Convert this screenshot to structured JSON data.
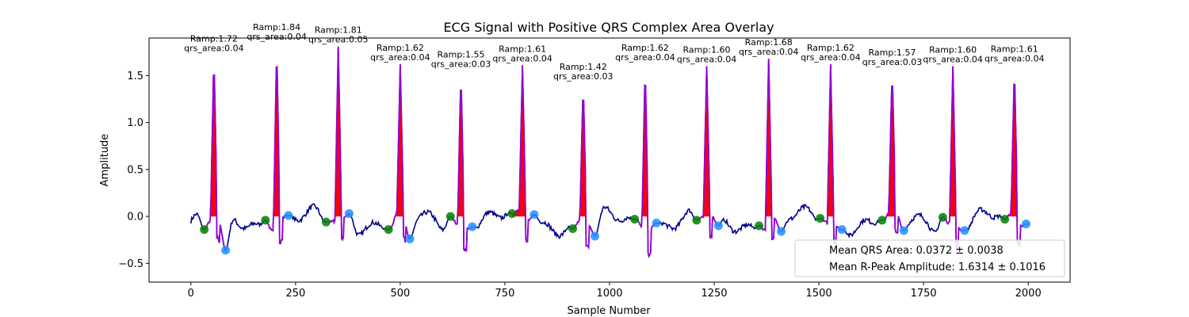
{
  "chart_data": {
    "type": "line",
    "title": "ECG Signal with Positive QRS Complex Area Overlay",
    "xlabel": "Sample Number",
    "ylabel": "Amplitude",
    "xlim": [
      -100,
      2100
    ],
    "ylim": [
      -0.7,
      1.9
    ],
    "xticks": [
      0,
      250,
      500,
      750,
      1000,
      1250,
      1500,
      1750,
      2000
    ],
    "yticks": [
      -0.5,
      0.0,
      0.5,
      1.0,
      1.5
    ],
    "xtick_labels": [
      "0",
      "250",
      "500",
      "750",
      "1000",
      "1250",
      "1500",
      "1750",
      "2000"
    ],
    "ytick_labels": [
      "−0.5",
      "0.0",
      "0.5",
      "1.0",
      "1.5"
    ],
    "grid": false,
    "colors": {
      "signal": "#00008b",
      "qrs_segment": "#9400d3",
      "qrs_area_fill": "#ff0000",
      "q_onset_marker": "#008000",
      "s_offset_marker": "#1e90ff"
    },
    "beats": [
      {
        "r_x": 55,
        "r_amp": 1.72,
        "ramp_label": "Ramp:1.72",
        "area_label": "qrs_area:0.04",
        "q_x": 32,
        "q_y": -0.14,
        "s_x": 83,
        "s_y": -0.36
      },
      {
        "r_x": 205,
        "r_amp": 1.84,
        "ramp_label": "Ramp:1.84",
        "area_label": "qrs_area:0.04",
        "q_x": 178,
        "q_y": -0.04,
        "s_x": 233,
        "s_y": 0.01
      },
      {
        "r_x": 352,
        "r_amp": 1.81,
        "ramp_label": "Ramp:1.81",
        "area_label": "qrs_area:0.05",
        "q_x": 323,
        "q_y": -0.06,
        "s_x": 378,
        "s_y": 0.03
      },
      {
        "r_x": 500,
        "r_amp": 1.62,
        "ramp_label": "Ramp:1.62",
        "area_label": "qrs_area:0.04",
        "q_x": 472,
        "q_y": -0.14,
        "s_x": 523,
        "s_y": -0.24
      },
      {
        "r_x": 645,
        "r_amp": 1.55,
        "ramp_label": "Ramp:1.55",
        "area_label": "qrs_area:0.03",
        "q_x": 620,
        "q_y": 0.0,
        "s_x": 672,
        "s_y": -0.11
      },
      {
        "r_x": 792,
        "r_amp": 1.61,
        "ramp_label": "Ramp:1.61",
        "area_label": "qrs_area:0.04",
        "q_x": 767,
        "q_y": 0.03,
        "s_x": 820,
        "s_y": 0.02
      },
      {
        "r_x": 937,
        "r_amp": 1.42,
        "ramp_label": "Ramp:1.42",
        "area_label": "qrs_area:0.03",
        "q_x": 912,
        "q_y": -0.13,
        "s_x": 965,
        "s_y": -0.21
      },
      {
        "r_x": 1085,
        "r_amp": 1.62,
        "ramp_label": "Ramp:1.62",
        "area_label": "qrs_area:0.04",
        "q_x": 1060,
        "q_y": -0.03,
        "s_x": 1112,
        "s_y": -0.07
      },
      {
        "r_x": 1232,
        "r_amp": 1.6,
        "ramp_label": "Ramp:1.60",
        "area_label": "qrs_area:0.04",
        "q_x": 1208,
        "q_y": -0.04,
        "s_x": 1260,
        "s_y": -0.1
      },
      {
        "r_x": 1380,
        "r_amp": 1.68,
        "ramp_label": "Ramp:1.68",
        "area_label": "qrs_area:0.04",
        "q_x": 1357,
        "q_y": -0.1,
        "s_x": 1410,
        "s_y": -0.16
      },
      {
        "r_x": 1528,
        "r_amp": 1.62,
        "ramp_label": "Ramp:1.62",
        "area_label": "qrs_area:0.04",
        "q_x": 1503,
        "q_y": -0.02,
        "s_x": 1555,
        "s_y": -0.14
      },
      {
        "r_x": 1675,
        "r_amp": 1.57,
        "ramp_label": "Ramp:1.57",
        "area_label": "qrs_area:0.03",
        "q_x": 1651,
        "q_y": -0.04,
        "s_x": 1703,
        "s_y": -0.15
      },
      {
        "r_x": 1820,
        "r_amp": 1.6,
        "ramp_label": "Ramp:1.60",
        "area_label": "qrs_area:0.04",
        "q_x": 1796,
        "q_y": -0.01,
        "s_x": 1848,
        "s_y": -0.15
      },
      {
        "r_x": 1967,
        "r_amp": 1.61,
        "ramp_label": "Ramp:1.61",
        "area_label": "qrs_area:0.04",
        "q_x": 1944,
        "q_y": -0.03,
        "s_x": 1995,
        "s_y": -0.08
      }
    ],
    "legend": {
      "placement": "lower-right",
      "entries": [
        "Mean QRS Area: 0.0372 ± 0.0038",
        "Mean R-Peak Amplitude: 1.6314 ± 0.1016"
      ]
    }
  }
}
